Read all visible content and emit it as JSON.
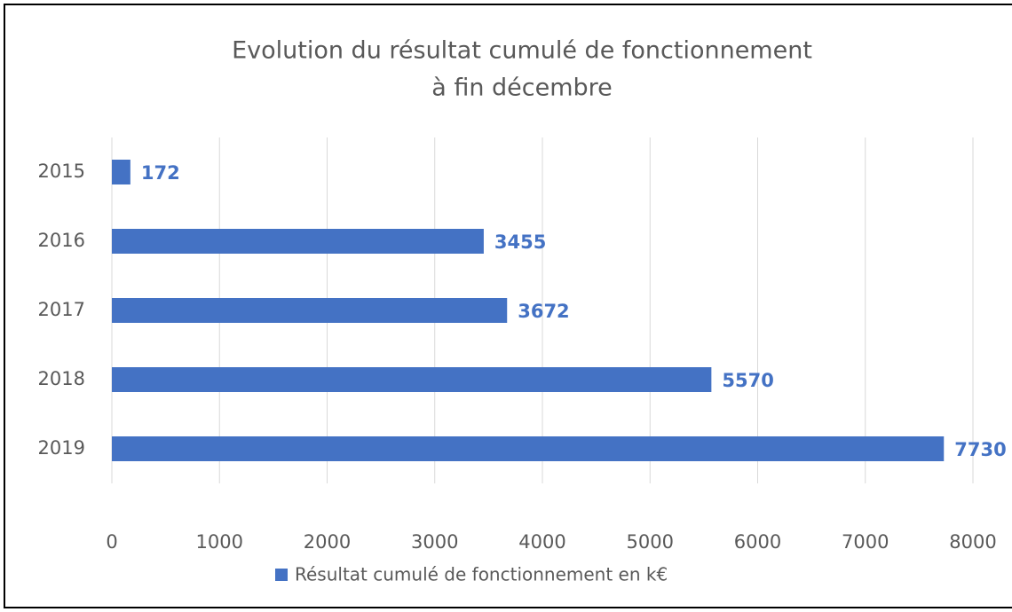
{
  "chart_data": {
    "type": "bar",
    "orientation": "horizontal",
    "title": [
      "Evolution du résultat cumulé de fonctionnement",
      "à fin décembre"
    ],
    "categories": [
      "2015",
      "2016",
      "2017",
      "2018",
      "2019"
    ],
    "series": [
      {
        "name": "Résultat cumulé de fonctionnement en k€",
        "color": "#4472c4",
        "values": [
          172,
          3455,
          3672,
          5570,
          7730
        ]
      }
    ],
    "xlim": [
      0,
      8000
    ],
    "xticks": [
      0,
      1000,
      2000,
      3000,
      4000,
      5000,
      6000,
      7000,
      8000
    ],
    "grid": true,
    "legend": "bottom",
    "data_labels": true
  }
}
